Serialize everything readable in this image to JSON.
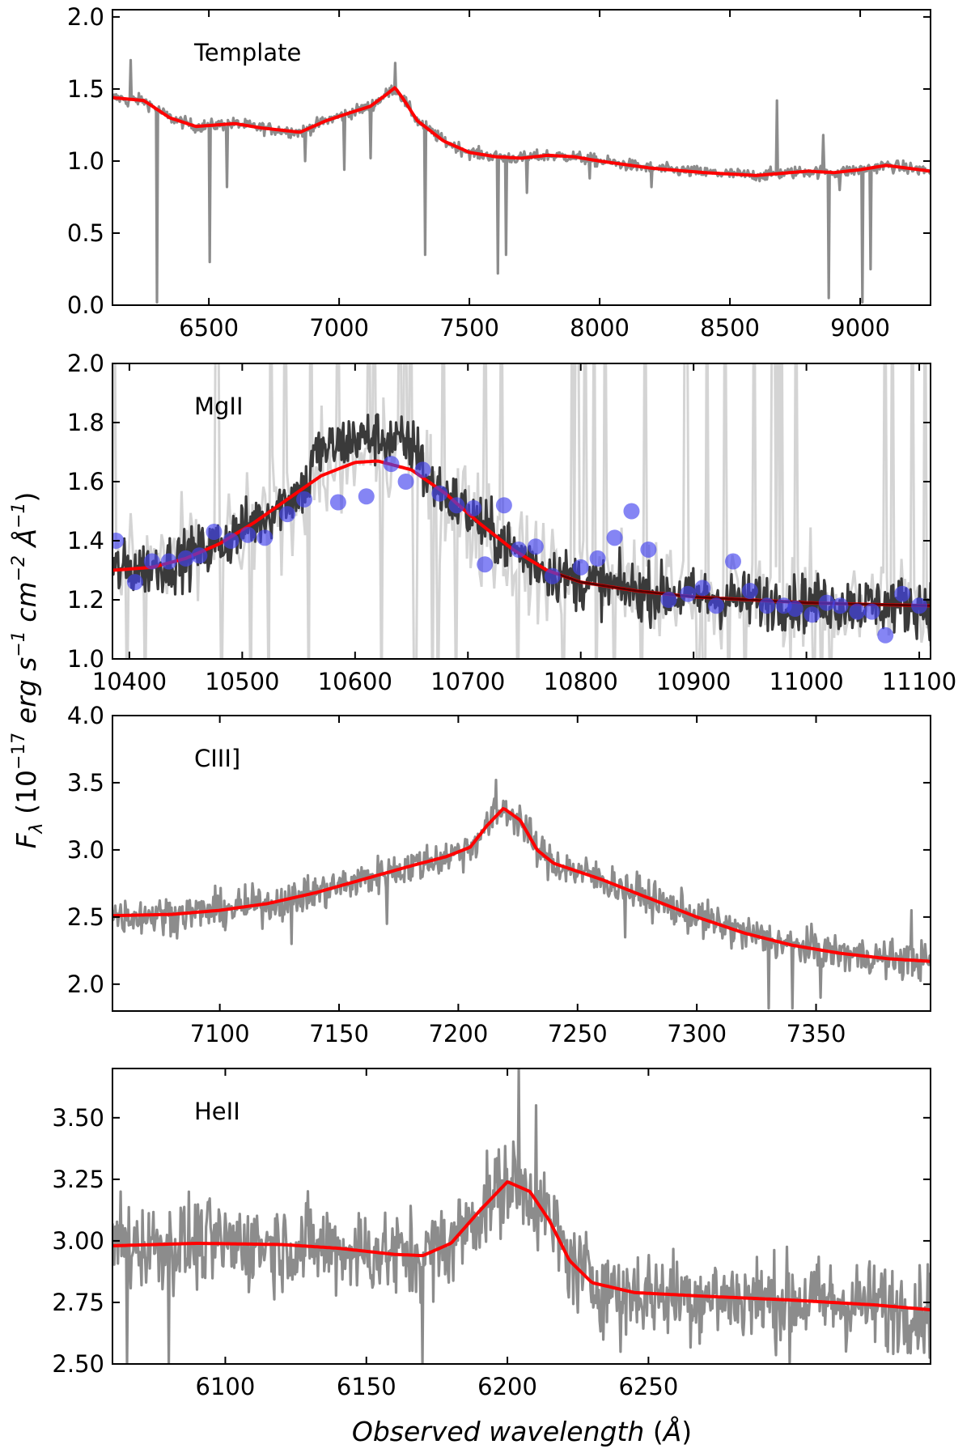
{
  "figure": {
    "y_axis_label": "F_λ (10^-17 erg s^-1 cm^-2 Å^-1)",
    "x_axis_label": "Observed wavelength (Å)"
  },
  "colors": {
    "data": "#8c8c8c",
    "data_light": "#d4d4d4",
    "data_dark": "#3a3a3a",
    "model": "#ff0000",
    "model_dark": "#5a0000",
    "points": "#4444ee"
  },
  "chart_data": [
    {
      "type": "line",
      "label": "Template",
      "xlim": [
        6130,
        9270
      ],
      "ylim": [
        0.0,
        2.05
      ],
      "xticks": [
        6500,
        7000,
        7500,
        8000,
        8500,
        9000
      ],
      "yticks": [
        0.0,
        0.5,
        1.0,
        1.5,
        2.0
      ],
      "ytick_decimals": 1,
      "noise": 0.04,
      "model": [
        [
          6130,
          1.44
        ],
        [
          6250,
          1.42
        ],
        [
          6350,
          1.3
        ],
        [
          6450,
          1.24
        ],
        [
          6600,
          1.26
        ],
        [
          6700,
          1.23
        ],
        [
          6850,
          1.2
        ],
        [
          6950,
          1.28
        ],
        [
          7050,
          1.34
        ],
        [
          7120,
          1.38
        ],
        [
          7180,
          1.46
        ],
        [
          7215,
          1.51
        ],
        [
          7250,
          1.42
        ],
        [
          7300,
          1.28
        ],
        [
          7400,
          1.14
        ],
        [
          7500,
          1.06
        ],
        [
          7600,
          1.03
        ],
        [
          7700,
          1.02
        ],
        [
          7800,
          1.04
        ],
        [
          7900,
          1.03
        ],
        [
          8000,
          1.0
        ],
        [
          8200,
          0.95
        ],
        [
          8400,
          0.92
        ],
        [
          8600,
          0.9
        ],
        [
          8800,
          0.93
        ],
        [
          8900,
          0.92
        ],
        [
          9000,
          0.94
        ],
        [
          9100,
          0.97
        ],
        [
          9270,
          0.93
        ]
      ],
      "dips": [
        [
          6190,
          1.38
        ],
        [
          6300,
          0.02
        ],
        [
          6505,
          0.3
        ],
        [
          6570,
          0.82
        ],
        [
          6870,
          1.0
        ],
        [
          7020,
          0.94
        ],
        [
          7120,
          1.02
        ],
        [
          7330,
          0.35
        ],
        [
          7610,
          0.22
        ],
        [
          7640,
          0.35
        ],
        [
          7720,
          0.78
        ],
        [
          7960,
          0.88
        ],
        [
          8200,
          0.82
        ],
        [
          8880,
          0.05
        ],
        [
          8920,
          0.8
        ],
        [
          9010,
          0.02
        ],
        [
          9040,
          0.25
        ]
      ],
      "spikes": [
        [
          6200,
          1.7
        ],
        [
          7215,
          1.68
        ],
        [
          8680,
          1.42
        ],
        [
          8860,
          1.18
        ]
      ]
    },
    {
      "type": "line",
      "label": "MgII",
      "xlim": [
        10385,
        11110
      ],
      "ylim": [
        1.0,
        2.0
      ],
      "xticks": [
        10400,
        10500,
        10600,
        10700,
        10800,
        10900,
        11000,
        11100
      ],
      "yticks": [
        1.0,
        1.2,
        1.4,
        1.6,
        1.8,
        2.0
      ],
      "ytick_decimals": 1,
      "noise": 0.09,
      "model": [
        [
          10385,
          1.3
        ],
        [
          10420,
          1.31
        ],
        [
          10450,
          1.34
        ],
        [
          10480,
          1.39
        ],
        [
          10510,
          1.46
        ],
        [
          10540,
          1.54
        ],
        [
          10570,
          1.62
        ],
        [
          10600,
          1.665
        ],
        [
          10620,
          1.67
        ],
        [
          10650,
          1.64
        ],
        [
          10680,
          1.56
        ],
        [
          10710,
          1.46
        ],
        [
          10740,
          1.37
        ],
        [
          10770,
          1.3
        ],
        [
          10800,
          1.26
        ],
        [
          10850,
          1.23
        ],
        [
          10900,
          1.21
        ],
        [
          10950,
          1.2
        ],
        [
          11000,
          1.19
        ],
        [
          11050,
          1.185
        ],
        [
          11110,
          1.18
        ]
      ],
      "points": [
        [
          10388,
          1.4
        ],
        [
          10405,
          1.26
        ],
        [
          10420,
          1.33
        ],
        [
          10435,
          1.33
        ],
        [
          10450,
          1.34
        ],
        [
          10462,
          1.35
        ],
        [
          10475,
          1.43
        ],
        [
          10490,
          1.4
        ],
        [
          10505,
          1.42
        ],
        [
          10520,
          1.41
        ],
        [
          10540,
          1.49
        ],
        [
          10555,
          1.54
        ],
        [
          10585,
          1.53
        ],
        [
          10610,
          1.55
        ],
        [
          10632,
          1.66
        ],
        [
          10645,
          1.6
        ],
        [
          10660,
          1.64
        ],
        [
          10675,
          1.56
        ],
        [
          10690,
          1.52
        ],
        [
          10705,
          1.51
        ],
        [
          10715,
          1.32
        ],
        [
          10732,
          1.52
        ],
        [
          10745,
          1.37
        ],
        [
          10760,
          1.38
        ],
        [
          10775,
          1.28
        ],
        [
          10800,
          1.31
        ],
        [
          10815,
          1.34
        ],
        [
          10830,
          1.41
        ],
        [
          10845,
          1.5
        ],
        [
          10860,
          1.37
        ],
        [
          10878,
          1.2
        ],
        [
          10895,
          1.22
        ],
        [
          10908,
          1.24
        ],
        [
          10920,
          1.18
        ],
        [
          10935,
          1.33
        ],
        [
          10950,
          1.23
        ],
        [
          10965,
          1.18
        ],
        [
          10980,
          1.18
        ],
        [
          10990,
          1.17
        ],
        [
          11005,
          1.15
        ],
        [
          11018,
          1.19
        ],
        [
          11030,
          1.18
        ],
        [
          11045,
          1.16
        ],
        [
          11058,
          1.16
        ],
        [
          11070,
          1.08
        ],
        [
          11085,
          1.22
        ],
        [
          11100,
          1.18
        ]
      ]
    },
    {
      "type": "line",
      "label": "CIII]",
      "xlim": [
        7055,
        7398
      ],
      "ylim": [
        1.8,
        4.0
      ],
      "xticks": [
        7100,
        7150,
        7200,
        7250,
        7300,
        7350
      ],
      "yticks": [
        2.0,
        2.5,
        3.0,
        3.5,
        4.0
      ],
      "ytick_decimals": 1,
      "noise": 0.13,
      "model": [
        [
          7055,
          2.51
        ],
        [
          7080,
          2.52
        ],
        [
          7100,
          2.55
        ],
        [
          7120,
          2.6
        ],
        [
          7140,
          2.68
        ],
        [
          7160,
          2.78
        ],
        [
          7180,
          2.88
        ],
        [
          7195,
          2.95
        ],
        [
          7205,
          3.02
        ],
        [
          7212,
          3.18
        ],
        [
          7219,
          3.31
        ],
        [
          7226,
          3.22
        ],
        [
          7233,
          3.0
        ],
        [
          7240,
          2.9
        ],
        [
          7260,
          2.78
        ],
        [
          7280,
          2.64
        ],
        [
          7300,
          2.5
        ],
        [
          7320,
          2.38
        ],
        [
          7340,
          2.29
        ],
        [
          7360,
          2.23
        ],
        [
          7380,
          2.19
        ],
        [
          7398,
          2.17
        ]
      ],
      "dips": [
        [
          7130,
          2.3
        ],
        [
          7170,
          2.45
        ],
        [
          7270,
          2.35
        ],
        [
          7330,
          1.82
        ],
        [
          7340,
          1.82
        ],
        [
          7352,
          1.9
        ]
      ],
      "spikes": [
        [
          7216,
          3.52
        ],
        [
          7390,
          2.55
        ]
      ]
    },
    {
      "type": "line",
      "label": "HeII",
      "xlim": [
        6060,
        6350
      ],
      "ylim": [
        2.5,
        3.7
      ],
      "xticks": [
        6100,
        6150,
        6200,
        6250
      ],
      "yticks": [
        2.5,
        2.75,
        3.0,
        3.25,
        3.5
      ],
      "ytick_decimals": 2,
      "noise": 0.17,
      "model": [
        [
          6060,
          2.98
        ],
        [
          6090,
          2.99
        ],
        [
          6120,
          2.985
        ],
        [
          6140,
          2.97
        ],
        [
          6160,
          2.945
        ],
        [
          6170,
          2.94
        ],
        [
          6180,
          2.99
        ],
        [
          6190,
          3.12
        ],
        [
          6200,
          3.24
        ],
        [
          6208,
          3.2
        ],
        [
          6215,
          3.08
        ],
        [
          6222,
          2.92
        ],
        [
          6230,
          2.83
        ],
        [
          6245,
          2.79
        ],
        [
          6270,
          2.775
        ],
        [
          6300,
          2.76
        ],
        [
          6330,
          2.74
        ],
        [
          6350,
          2.72
        ]
      ],
      "dips": [
        [
          6065,
          2.5
        ],
        [
          6080,
          2.5
        ],
        [
          6170,
          2.5
        ],
        [
          6240,
          2.55
        ],
        [
          6300,
          2.5
        ],
        [
          6335,
          2.55
        ]
      ],
      "spikes": [
        [
          6204,
          3.7
        ],
        [
          6210,
          3.55
        ],
        [
          6063,
          3.2
        ]
      ]
    }
  ]
}
